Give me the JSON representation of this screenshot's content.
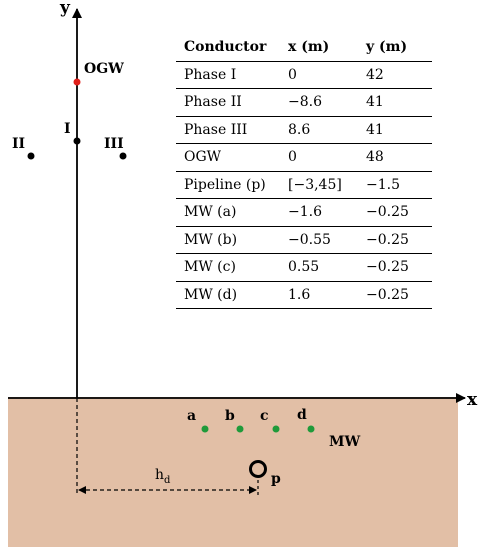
{
  "axes": {
    "x_label": "x",
    "y_label": "y"
  },
  "conductors": {
    "ogw": "OGW",
    "phase_1": "I",
    "phase_2": "II",
    "phase_3": "III"
  },
  "ground": {
    "color": "#e2bfa6",
    "wires": [
      "a",
      "b",
      "c",
      "d"
    ],
    "mw_label": "MW",
    "pipeline_label": "p",
    "distance_label": "h",
    "distance_subscript": "d"
  },
  "colors": {
    "ogw_dot": "#e0201b",
    "phase_dot": "#000000",
    "wire_dot": "#1f9a3a"
  },
  "table": {
    "headers": [
      "Conductor",
      "x (m)",
      "y (m)"
    ],
    "rows": [
      [
        "Phase I",
        "0",
        "42"
      ],
      [
        "Phase II",
        "−8.6",
        "41"
      ],
      [
        "Phase III",
        "8.6",
        "41"
      ],
      [
        "OGW",
        "0",
        "48"
      ],
      [
        "Pipeline (p)",
        "[−3,45]",
        "−1.5"
      ],
      [
        "MW (a)",
        "−1.6",
        "−0.25"
      ],
      [
        "MW (b)",
        "−0.55",
        "−0.25"
      ],
      [
        "MW (c)",
        "0.55",
        "−0.25"
      ],
      [
        "MW (d)",
        "1.6",
        "−0.25"
      ]
    ]
  }
}
